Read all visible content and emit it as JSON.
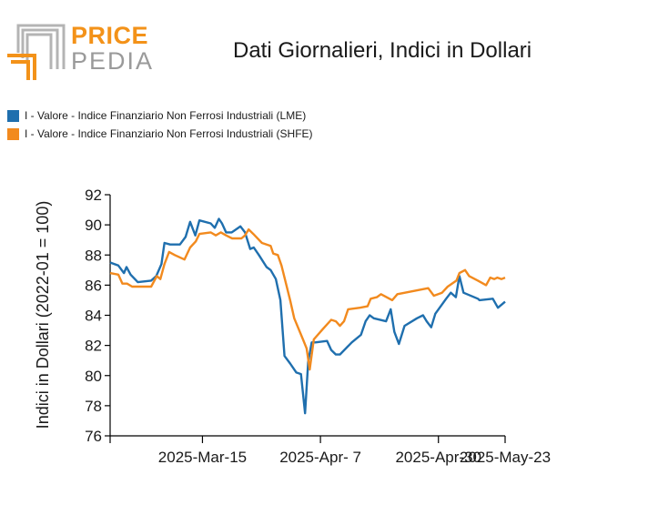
{
  "logo": {
    "word1": "PRICE",
    "word2": "PEDIA"
  },
  "colors": {
    "series_lme": "#1f6fae",
    "series_shfe": "#f28a1e",
    "axis": "#000000",
    "logo_orange": "#f39219",
    "logo_gray": "#9a9a9a"
  },
  "chart_data": {
    "type": "line",
    "title": "Dati Giornalieri, Indici in Dollari",
    "xlabel": "",
    "ylabel": "Indici in Dollari (2022-01 = 100)",
    "ylim": [
      76,
      92
    ],
    "yticks": [
      76,
      78,
      80,
      82,
      84,
      86,
      88,
      90,
      92
    ],
    "xlim": [
      0,
      77
    ],
    "xticks": [
      {
        "x": 18,
        "label": "2025-Mar-15"
      },
      {
        "x": 41,
        "label": "2025-Apr- 7"
      },
      {
        "x": 64,
        "label": "2025-Apr-30"
      },
      {
        "x": 77,
        "label": "2025-May-23"
      }
    ],
    "legend_position": "top-left",
    "series": [
      {
        "name": "I - Valore - Indice Finanziario Non Ferrosi Industriali (LME)",
        "color": "#1f6fae",
        "points": [
          [
            0,
            87.5
          ],
          [
            1.6,
            87.3
          ],
          [
            2.7,
            86.8
          ],
          [
            3.2,
            87.2
          ],
          [
            4,
            86.7
          ],
          [
            5.4,
            86.2
          ],
          [
            8,
            86.3
          ],
          [
            9,
            86.6
          ],
          [
            10,
            87.4
          ],
          [
            10.6,
            88.8
          ],
          [
            11.7,
            88.7
          ],
          [
            13.6,
            88.7
          ],
          [
            14.7,
            89.2
          ],
          [
            15.6,
            90.2
          ],
          [
            16.6,
            89.3
          ],
          [
            17.4,
            90.3
          ],
          [
            19.6,
            90.1
          ],
          [
            20.4,
            89.8
          ],
          [
            21.2,
            90.4
          ],
          [
            21.8,
            90.1
          ],
          [
            22.6,
            89.5
          ],
          [
            23.7,
            89.5
          ],
          [
            25.4,
            89.9
          ],
          [
            26.3,
            89.5
          ],
          [
            27.3,
            88.4
          ],
          [
            28,
            88.5
          ],
          [
            29,
            88.0
          ],
          [
            30.5,
            87.2
          ],
          [
            31.3,
            87.0
          ],
          [
            32.3,
            86.4
          ],
          [
            33.2,
            85.0
          ],
          [
            34,
            81.3
          ],
          [
            35.1,
            80.8
          ],
          [
            36.3,
            80.2
          ],
          [
            37.2,
            80.1
          ],
          [
            38,
            77.5
          ],
          [
            38.6,
            80.9
          ],
          [
            39.3,
            82.2
          ],
          [
            40,
            82.2
          ],
          [
            42.3,
            82.3
          ],
          [
            43.1,
            81.7
          ],
          [
            44,
            81.4
          ],
          [
            44.8,
            81.4
          ],
          [
            47.1,
            82.2
          ],
          [
            48.9,
            82.7
          ],
          [
            49.8,
            83.6
          ],
          [
            50.6,
            84.0
          ],
          [
            51.4,
            83.8
          ],
          [
            53.8,
            83.6
          ],
          [
            54.7,
            84.4
          ],
          [
            55.4,
            82.9
          ],
          [
            56.3,
            82.1
          ],
          [
            57.4,
            83.3
          ],
          [
            59.8,
            83.8
          ],
          [
            61,
            84.0
          ],
          [
            61.7,
            83.6
          ],
          [
            62.6,
            83.2
          ],
          [
            63.4,
            84.1
          ],
          [
            65.5,
            85.1
          ],
          [
            66.4,
            85.5
          ],
          [
            67.4,
            85.2
          ],
          [
            68.1,
            86.6
          ],
          [
            68.9,
            85.5
          ],
          [
            71.7,
            85.1
          ],
          [
            72,
            85.0
          ],
          [
            74.6,
            85.1
          ],
          [
            75.6,
            84.5
          ],
          [
            77,
            84.9
          ]
        ]
      },
      {
        "name": "I - Valore - Indice Finanziario Non Ferrosi Industriali (SHFE)",
        "color": "#f28a1e",
        "points": [
          [
            0,
            86.8
          ],
          [
            1.6,
            86.7
          ],
          [
            2.4,
            86.1
          ],
          [
            3.3,
            86.1
          ],
          [
            4.3,
            85.9
          ],
          [
            6.7,
            85.9
          ],
          [
            8,
            85.9
          ],
          [
            9.1,
            86.6
          ],
          [
            9.8,
            86.4
          ],
          [
            10.6,
            87.4
          ],
          [
            11.5,
            88.2
          ],
          [
            12.6,
            88.0
          ],
          [
            14.5,
            87.7
          ],
          [
            15.6,
            88.5
          ],
          [
            16.7,
            88.9
          ],
          [
            17.4,
            89.4
          ],
          [
            19.6,
            89.5
          ],
          [
            20.6,
            89.3
          ],
          [
            21.6,
            89.5
          ],
          [
            22.6,
            89.3
          ],
          [
            23.8,
            89.1
          ],
          [
            25.6,
            89.1
          ],
          [
            26.3,
            89.3
          ],
          [
            27,
            89.7
          ],
          [
            27.9,
            89.4
          ],
          [
            29.6,
            88.8
          ],
          [
            31.3,
            88.6
          ],
          [
            31.8,
            88.1
          ],
          [
            32.7,
            88.0
          ],
          [
            33.4,
            87.3
          ],
          [
            35.1,
            85.0
          ],
          [
            35.9,
            83.8
          ],
          [
            37.6,
            82.4
          ],
          [
            38.3,
            81.8
          ],
          [
            38.9,
            80.4
          ],
          [
            39.7,
            82.4
          ],
          [
            41.5,
            83.1
          ],
          [
            43.1,
            83.7
          ],
          [
            44,
            83.6
          ],
          [
            44.8,
            83.3
          ],
          [
            45.6,
            83.6
          ],
          [
            46.4,
            84.4
          ],
          [
            48.7,
            84.5
          ],
          [
            50.2,
            84.6
          ],
          [
            50.8,
            85.1
          ],
          [
            52,
            85.2
          ],
          [
            52.8,
            85.4
          ],
          [
            55,
            85.0
          ],
          [
            56,
            85.4
          ],
          [
            62,
            85.8
          ],
          [
            63.1,
            85.3
          ],
          [
            64.7,
            85.5
          ],
          [
            65.8,
            85.9
          ],
          [
            67.5,
            86.3
          ],
          [
            68.1,
            86.8
          ],
          [
            69.2,
            87.0
          ],
          [
            70,
            86.6
          ],
          [
            71.7,
            86.3
          ],
          [
            73.3,
            86.0
          ],
          [
            74.1,
            86.5
          ],
          [
            74.9,
            86.4
          ],
          [
            75.5,
            86.5
          ],
          [
            76.3,
            86.4
          ],
          [
            77,
            86.5
          ]
        ]
      }
    ]
  }
}
